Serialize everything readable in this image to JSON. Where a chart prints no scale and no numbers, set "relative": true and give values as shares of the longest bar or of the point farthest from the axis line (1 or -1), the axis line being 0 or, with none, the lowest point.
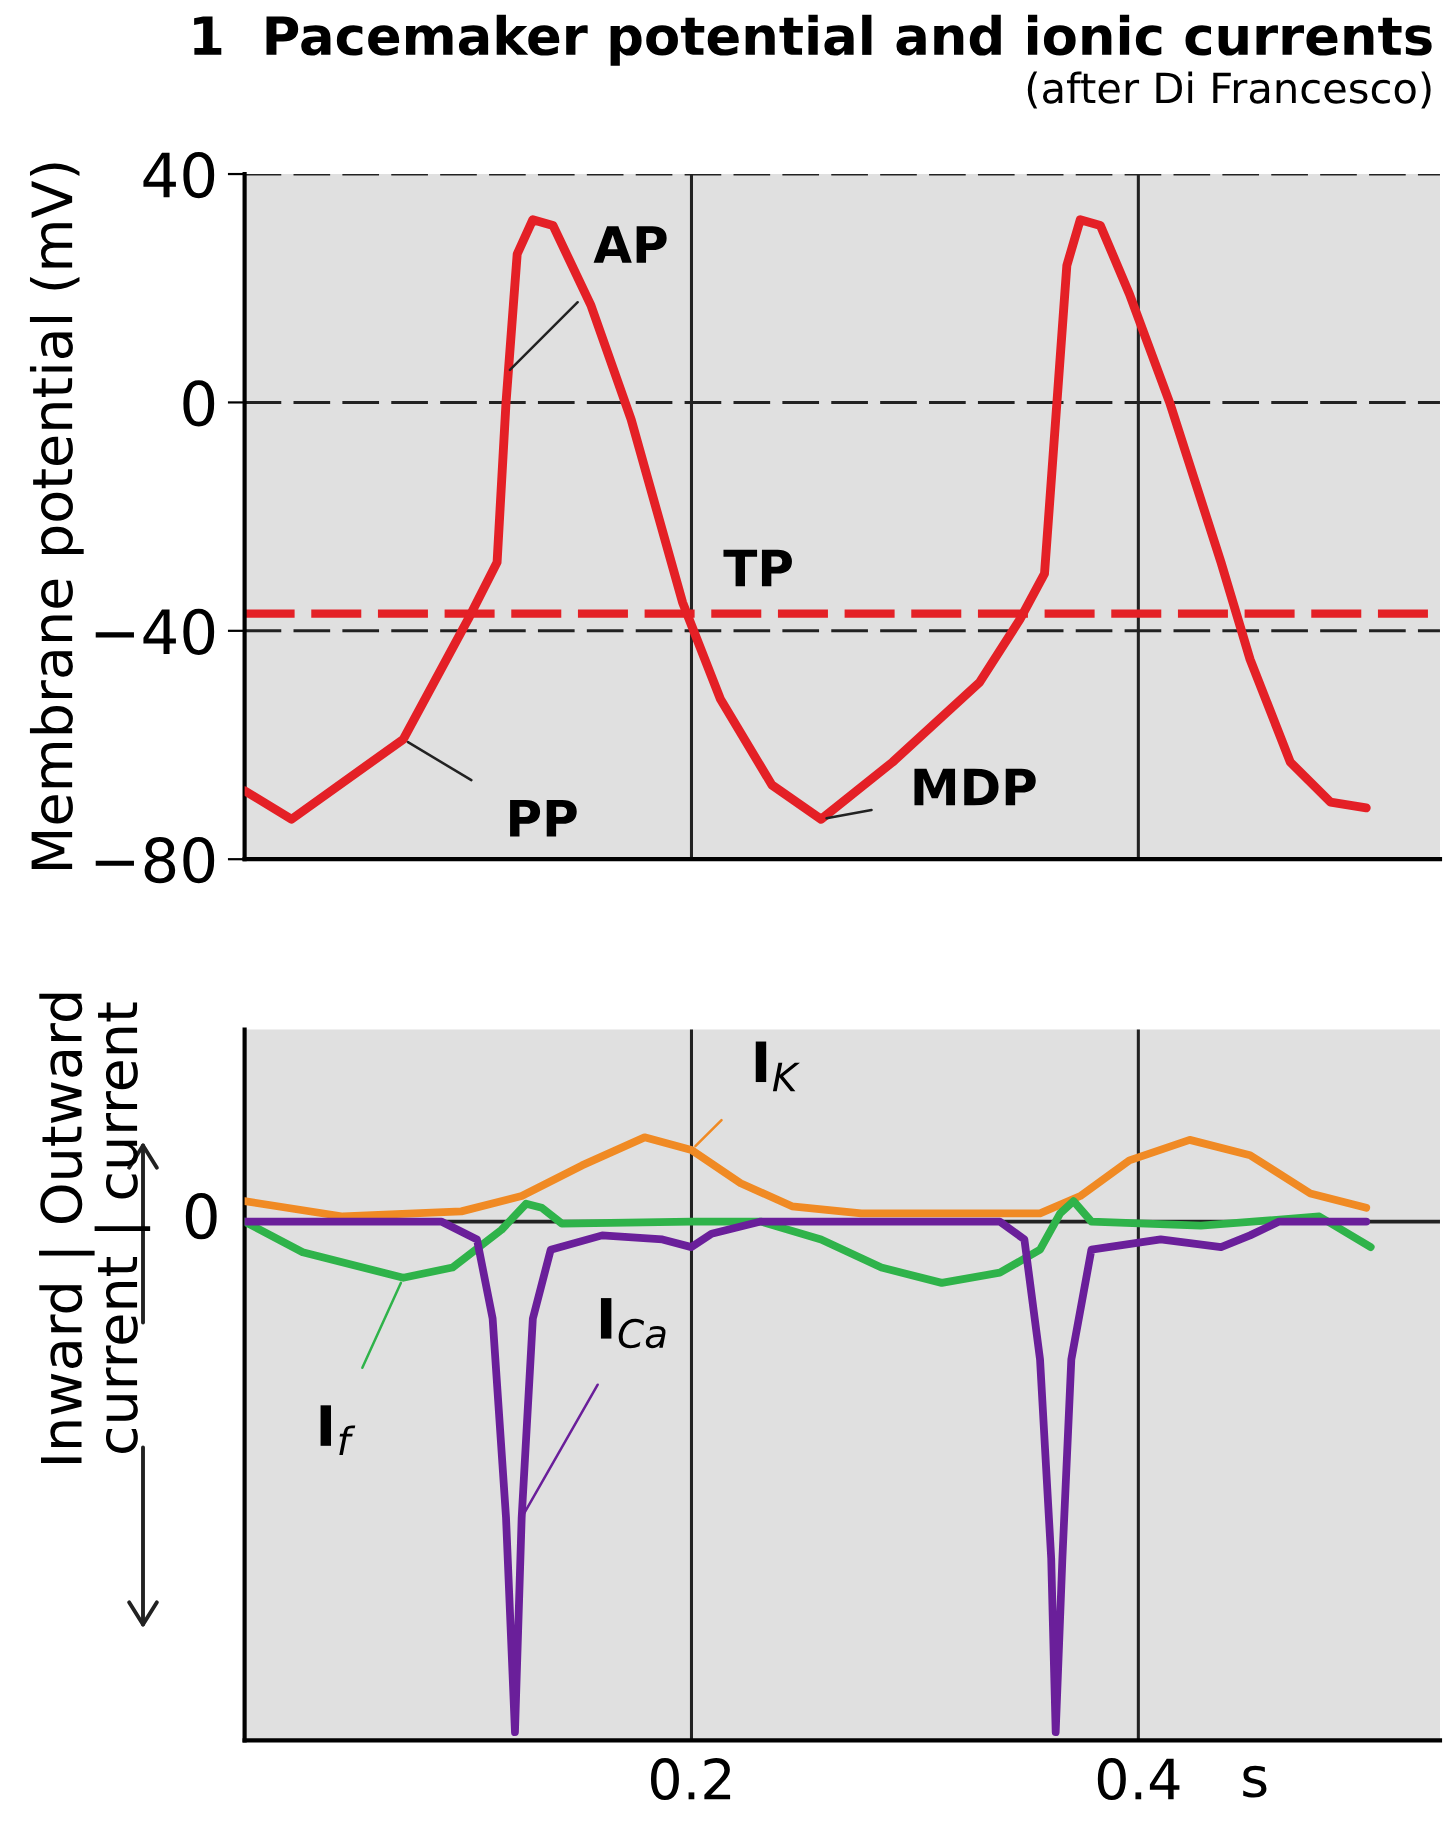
{
  "chart_data": [
    {
      "type": "line",
      "title": "1  Pacemaker potential and ionic currents",
      "subtitle": "(after Di Francesco)",
      "ylabel": "Membrane potential (mV)",
      "xlim": [
        0,
        0.535
      ],
      "xticks": [
        {
          "value": 0.2,
          "label": null
        },
        {
          "value": 0.4,
          "label": null
        }
      ],
      "ylim": [
        -80,
        40
      ],
      "yticks": [
        40,
        0,
        -40,
        -80
      ],
      "grid": true,
      "tick_labels": "y",
      "series": [
        {
          "color": "#e42026",
          "x": [
            0,
            0.021,
            0.071,
            0.1,
            0.113,
            0.117,
            0.122,
            0.129,
            0.138,
            0.155,
            0.173,
            0.196,
            0.213,
            0.236,
            0.258,
            0.29,
            0.329,
            0.347,
            0.358,
            0.363,
            0.368,
            0.374,
            0.383,
            0.396,
            0.414,
            0.437,
            0.45,
            0.468,
            0.486,
            0.502
          ],
          "values": [
            -68,
            -73,
            -59,
            -38,
            -28,
            0,
            26,
            32,
            31,
            17,
            -3,
            -35,
            -52,
            -67,
            -73,
            -63,
            -49,
            -38,
            -30,
            -3,
            24,
            32,
            31,
            19,
            0,
            -28,
            -45,
            -63,
            -70,
            -71
          ]
        }
      ],
      "ref_lines": [
        {
          "axis": "y",
          "value": -37,
          "label": "TP",
          "color": "#e42026",
          "line_style": "dashed"
        }
      ],
      "annotations": [
        {
          "text": "AP",
          "x": 0.117,
          "y": 5
        },
        {
          "text": "PP",
          "x": 0.071,
          "y": -59
        },
        {
          "text": "MDP",
          "x": 0.258,
          "y": -73
        }
      ]
    },
    {
      "type": "line",
      "relative": true,
      "ylabel": "Inward | Outward\ncurrent | current",
      "xlabel": "s",
      "xlim": [
        0,
        0.535
      ],
      "xticks": [
        0.2,
        0.4
      ],
      "grid": "x",
      "tick_labels": "x",
      "ref_lines": [
        {
          "axis": "y",
          "value": 0,
          "label": "0",
          "color": "#222222"
        }
      ],
      "series": [
        {
          "name": "I$_{K}$",
          "color": "#f08a24",
          "x": [
            0,
            0.044,
            0.097,
            0.124,
            0.151,
            0.179,
            0.2,
            0.222,
            0.245,
            0.276,
            0.356,
            0.374,
            0.396,
            0.423,
            0.45,
            0.477,
            0.502
          ],
          "values": [
            0.04,
            0.01,
            0.02,
            0.05,
            0.11,
            0.165,
            0.14,
            0.075,
            0.03,
            0.016,
            0.016,
            0.05,
            0.12,
            0.16,
            0.13,
            0.055,
            0.027
          ]
        },
        {
          "name": "I$_{f}$",
          "color": "#2fb34a",
          "x": [
            0,
            0.026,
            0.071,
            0.093,
            0.115,
            0.126,
            0.133,
            0.142,
            0.2,
            0.231,
            0.258,
            0.285,
            0.312,
            0.338,
            0.356,
            0.365,
            0.371,
            0.379,
            0.428,
            0.481,
            0.504
          ],
          "values": [
            0,
            -0.06,
            -0.11,
            -0.09,
            -0.016,
            0.035,
            0.027,
            -0.004,
            0,
            0,
            -0.035,
            -0.09,
            -0.12,
            -0.1,
            -0.055,
            0.016,
            0.04,
            0,
            -0.008,
            0.01,
            -0.05
          ]
        },
        {
          "name": "I$_{Ca}$",
          "color": "#6a1f9a",
          "x": [
            0,
            0.088,
            0.104,
            0.111,
            0.117,
            0.121,
            0.124,
            0.129,
            0.137,
            0.16,
            0.187,
            0.2,
            0.209,
            0.231,
            0.338,
            0.349,
            0.356,
            0.361,
            0.363,
            0.366,
            0.37,
            0.379,
            0.41,
            0.437,
            0.45,
            0.463,
            0.502
          ],
          "values": [
            0,
            0,
            -0.035,
            -0.19,
            -0.58,
            -1,
            -0.58,
            -0.19,
            -0.055,
            -0.027,
            -0.035,
            -0.05,
            -0.024,
            0,
            0,
            -0.035,
            -0.27,
            -0.66,
            -1,
            -0.66,
            -0.27,
            -0.055,
            -0.035,
            -0.05,
            -0.027,
            0,
            0
          ]
        }
      ]
    }
  ]
}
